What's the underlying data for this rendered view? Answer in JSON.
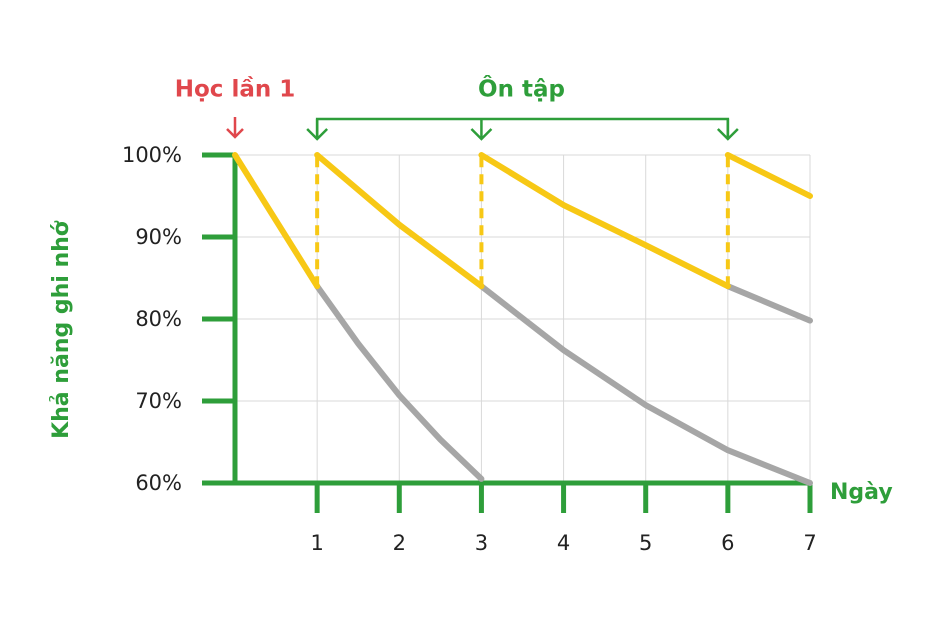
{
  "chart_data": {
    "type": "line",
    "y_label": "Khả năng ghi nhớ",
    "x_label": "Ngày",
    "first_study": {
      "text": "Học lần 1",
      "x": 0,
      "color": "#e0474c"
    },
    "review": {
      "text": "Ôn tập",
      "x": [
        1,
        3,
        6
      ],
      "color": "#2e9e3a"
    },
    "axis_color": "#2e9e3a",
    "grid": true,
    "xlim": [
      0,
      7
    ],
    "xticks": [
      1,
      2,
      3,
      4,
      5,
      6,
      7
    ],
    "ylim": [
      60,
      100
    ],
    "yticks": [
      {
        "value": 60,
        "label": "60%"
      },
      {
        "value": 70,
        "label": "70%"
      },
      {
        "value": 80,
        "label": "80%"
      },
      {
        "value": 90,
        "label": "90%"
      },
      {
        "value": 100,
        "label": "100%"
      }
    ],
    "series": [
      {
        "color": "#a6a6a6",
        "x": [
          1,
          1.5,
          2,
          2.5,
          3
        ],
        "values": [
          84,
          77,
          70.7,
          65.3,
          60.5
        ]
      },
      {
        "color": "#a6a6a6",
        "x": [
          3,
          4,
          5,
          6,
          7
        ],
        "values": [
          84,
          76.2,
          69.5,
          64,
          60
        ]
      },
      {
        "color": "#a6a6a6",
        "x": [
          6,
          7
        ],
        "values": [
          84,
          79.8
        ]
      },
      {
        "color": "#f7c815",
        "x": [
          0,
          1
        ],
        "values": [
          100,
          84
        ]
      },
      {
        "color": "#f7c815",
        "x": [
          1,
          2,
          3
        ],
        "values": [
          100,
          91.5,
          84
        ]
      },
      {
        "color": "#f7c815",
        "x": [
          3,
          4,
          5,
          6
        ],
        "values": [
          100,
          93.9,
          89,
          84
        ]
      },
      {
        "color": "#f7c815",
        "x": [
          6,
          7
        ],
        "values": [
          100,
          95
        ]
      },
      {
        "color": "#f7c815",
        "dashed": true,
        "x": [
          1,
          1
        ],
        "values": [
          84,
          100
        ]
      },
      {
        "color": "#f7c815",
        "dashed": true,
        "x": [
          3,
          3
        ],
        "values": [
          84,
          100
        ]
      },
      {
        "color": "#f7c815",
        "dashed": true,
        "x": [
          6,
          6
        ],
        "values": [
          84,
          100
        ]
      }
    ]
  }
}
